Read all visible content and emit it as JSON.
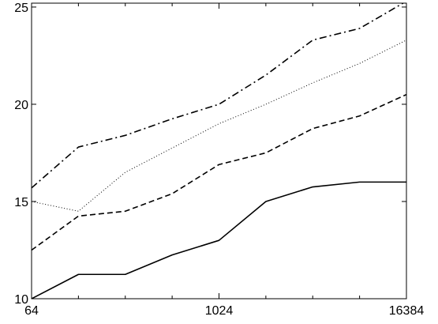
{
  "chart_data": {
    "type": "line",
    "x_scale": "log2",
    "x": [
      64,
      128,
      256,
      512,
      1024,
      2048,
      4096,
      8192,
      16384
    ],
    "xlim": [
      64,
      16384
    ],
    "ylim": [
      10,
      25.2
    ],
    "x_ticks": [
      64,
      1024,
      16384
    ],
    "x_tick_labels": [
      "64",
      "1024",
      "16384"
    ],
    "y_ticks": [
      10,
      15,
      20,
      25
    ],
    "y_tick_labels": [
      "10",
      "15",
      "20",
      "25"
    ],
    "x_minor_ticks": [
      128,
      256,
      512,
      2048,
      4096,
      8192
    ],
    "title": "",
    "xlabel": "",
    "ylabel": "",
    "grid": false,
    "legend": false,
    "series": [
      {
        "style": "solid",
        "values": [
          10.0,
          11.25,
          11.25,
          12.25,
          13.0,
          15.0,
          15.75,
          16.0,
          16.0
        ]
      },
      {
        "style": "dashed",
        "values": [
          12.5,
          14.25,
          14.5,
          15.4,
          16.9,
          17.5,
          18.75,
          19.4,
          20.5
        ]
      },
      {
        "style": "dotted",
        "values": [
          15.0,
          14.5,
          16.5,
          17.75,
          19.0,
          20.0,
          21.1,
          22.1,
          23.3
        ]
      },
      {
        "style": "dash-dot",
        "values": [
          15.7,
          17.8,
          18.4,
          19.25,
          20.0,
          21.5,
          23.3,
          23.9,
          25.3
        ]
      }
    ]
  }
}
